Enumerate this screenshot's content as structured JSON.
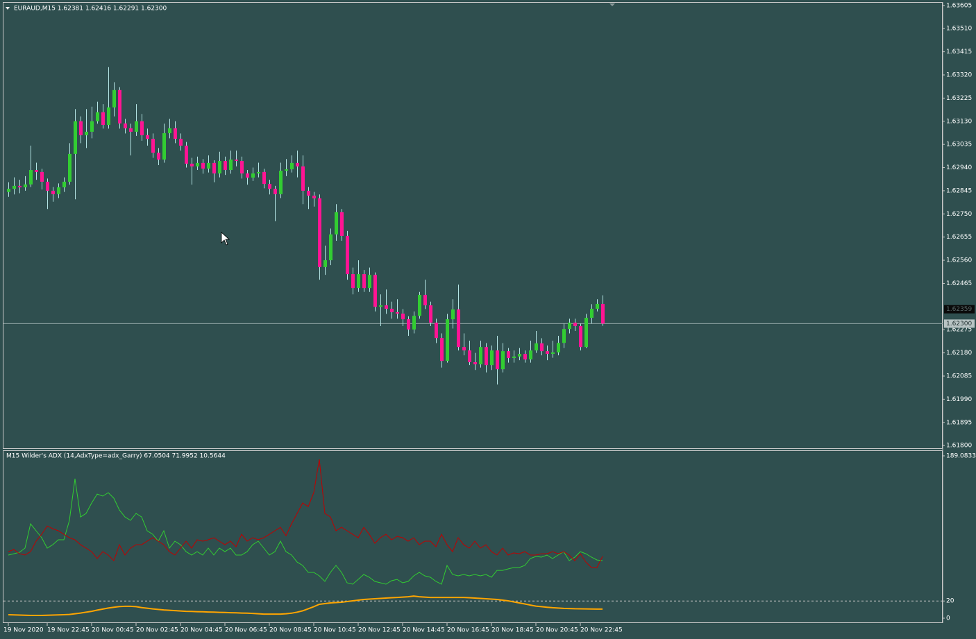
{
  "chart_data": [
    {
      "type": "candlestick",
      "title": "EURAUD,M15  1.62381 1.62416 1.62291 1.62300",
      "categories": [
        "19 Nov 2020",
        null,
        null,
        null,
        null,
        null,
        null,
        "19 Nov 22:45",
        null,
        null,
        null,
        null,
        null,
        null,
        null,
        "20 Nov 00:45",
        null,
        null,
        null,
        null,
        null,
        null,
        null,
        "20 Nov 02:45",
        null,
        null,
        null,
        null,
        null,
        null,
        null,
        "20 Nov 04:45",
        null,
        null,
        null,
        null,
        null,
        null,
        null,
        "20 Nov 06:45",
        null,
        null,
        null,
        null,
        null,
        null,
        null,
        "20 Nov 08:45",
        null,
        null,
        null,
        null,
        null,
        null,
        null,
        "20 Nov 10:45",
        null,
        null,
        null,
        null,
        null,
        null,
        null,
        "20 Nov 12:45",
        null,
        null,
        null,
        null,
        null,
        null,
        null,
        "20 Nov 14:45",
        null,
        null,
        null,
        null,
        null,
        null,
        null,
        "20 Nov 16:45",
        null,
        null,
        null,
        null,
        null,
        null,
        null,
        "20 Nov 18:45",
        null,
        null,
        null,
        null,
        null,
        null,
        null,
        "20 Nov 20:45",
        null,
        null,
        null,
        null,
        null,
        null,
        null,
        "20 Nov 22:45",
        null,
        null,
        null,
        null
      ],
      "open": [
        1.6284,
        1.62853,
        1.62865,
        1.62859,
        1.62871,
        1.6293,
        1.62922,
        1.62882,
        1.62845,
        1.62831,
        1.62859,
        1.62882,
        1.62996,
        1.6313,
        1.63073,
        1.63087,
        1.6313,
        1.63167,
        1.63115,
        1.63187,
        1.63258,
        1.63121,
        1.63101,
        1.63087,
        1.6313,
        1.63073,
        1.63058,
        1.63001,
        1.62973,
        1.63081,
        1.63101,
        1.63058,
        1.6303,
        1.62956,
        1.62945,
        1.62959,
        1.62936,
        1.62959,
        1.62916,
        1.62967,
        1.6293,
        1.62973,
        1.62967,
        1.62916,
        1.62899,
        1.62916,
        1.62922,
        1.62873,
        1.62853,
        1.62831,
        1.62927,
        1.62933,
        1.62959,
        1.62945,
        1.62845,
        1.62825,
        1.62814,
        1.62532,
        1.6256,
        1.62666,
        1.62757,
        1.6266,
        1.62503,
        1.62446,
        1.62503,
        1.62446,
        1.625,
        1.62369,
        1.62375,
        1.62361,
        1.62347,
        1.62341,
        1.62318,
        1.62276,
        1.62332,
        1.62418,
        1.62375,
        1.62304,
        1.62241,
        1.62147,
        1.62318,
        1.62358,
        1.62204,
        1.6219,
        1.62142,
        1.62133,
        1.62204,
        1.6213,
        1.6219,
        1.62113,
        1.62187,
        1.62159,
        1.62165,
        1.62176,
        1.62153,
        1.6219,
        1.62219,
        1.62187,
        1.62176,
        1.62182,
        1.62221,
        1.62278,
        1.62304,
        1.6229,
        1.62204,
        1.62324,
        1.62361,
        1.62381
      ],
      "high": [
        1.6288,
        1.629,
        1.6289,
        1.62905,
        1.6303,
        1.6296,
        1.62935,
        1.62895,
        1.6286,
        1.62875,
        1.629,
        1.6304,
        1.6318,
        1.6315,
        1.6318,
        1.6319,
        1.6321,
        1.632,
        1.63352,
        1.6329,
        1.6327,
        1.6314,
        1.6312,
        1.632,
        1.6316,
        1.631,
        1.6308,
        1.6302,
        1.6312,
        1.6314,
        1.6313,
        1.6308,
        1.63045,
        1.6298,
        1.62985,
        1.62975,
        1.6299,
        1.6297,
        1.63005,
        1.62985,
        1.6301,
        1.6301,
        1.62985,
        1.6293,
        1.6294,
        1.6296,
        1.62935,
        1.6289,
        1.62865,
        1.6296,
        1.62975,
        1.6299,
        1.6301,
        1.6299,
        1.6286,
        1.6284,
        1.6283,
        1.6262,
        1.6269,
        1.6279,
        1.6277,
        1.6268,
        1.6253,
        1.6256,
        1.6252,
        1.6253,
        1.6251,
        1.6242,
        1.6244,
        1.6239,
        1.624,
        1.6236,
        1.6233,
        1.6235,
        1.6243,
        1.6248,
        1.6239,
        1.6232,
        1.6226,
        1.6234,
        1.624,
        1.6246,
        1.6226,
        1.6223,
        1.6218,
        1.6223,
        1.6222,
        1.6221,
        1.6225,
        1.6222,
        1.622,
        1.6219,
        1.622,
        1.6219,
        1.6223,
        1.6227,
        1.6224,
        1.6221,
        1.6223,
        1.6225,
        1.623,
        1.6232,
        1.6232,
        1.623,
        1.6234,
        1.6238,
        1.624,
        1.62416
      ],
      "low": [
        1.6282,
        1.6283,
        1.62835,
        1.62845,
        1.6286,
        1.6289,
        1.6285,
        1.6277,
        1.628,
        1.62815,
        1.6284,
        1.6287,
        1.6281,
        1.6304,
        1.6302,
        1.6306,
        1.6312,
        1.631,
        1.631,
        1.6315,
        1.631,
        1.6308,
        1.6299,
        1.6307,
        1.6305,
        1.6303,
        1.6298,
        1.6295,
        1.6296,
        1.6306,
        1.6304,
        1.6301,
        1.6294,
        1.6287,
        1.6293,
        1.62915,
        1.6292,
        1.6288,
        1.629,
        1.6291,
        1.62915,
        1.62945,
        1.62895,
        1.6287,
        1.62885,
        1.629,
        1.62855,
        1.6283,
        1.6272,
        1.62815,
        1.62905,
        1.6292,
        1.629,
        1.6279,
        1.6277,
        1.6278,
        1.6248,
        1.625,
        1.6254,
        1.6264,
        1.6264,
        1.6248,
        1.6242,
        1.6243,
        1.6243,
        1.6243,
        1.6235,
        1.6229,
        1.6234,
        1.6232,
        1.6232,
        1.6229,
        1.6225,
        1.6226,
        1.6232,
        1.6236,
        1.6229,
        1.6222,
        1.6212,
        1.6214,
        1.6228,
        1.6219,
        1.6217,
        1.6213,
        1.6211,
        1.6212,
        1.621,
        1.6211,
        1.6205,
        1.621,
        1.6214,
        1.6214,
        1.6215,
        1.6214,
        1.6214,
        1.6218,
        1.6217,
        1.6215,
        1.6216,
        1.6217,
        1.622,
        1.6226,
        1.6227,
        1.6219,
        1.622,
        1.623,
        1.6235,
        1.62291
      ],
      "close": [
        1.62853,
        1.62865,
        1.62859,
        1.62871,
        1.6293,
        1.62922,
        1.62882,
        1.62845,
        1.62831,
        1.62859,
        1.62882,
        1.62996,
        1.6313,
        1.63073,
        1.63087,
        1.6313,
        1.63167,
        1.63115,
        1.63187,
        1.63258,
        1.63121,
        1.63101,
        1.63087,
        1.6313,
        1.63073,
        1.63058,
        1.63001,
        1.62973,
        1.63081,
        1.63101,
        1.63058,
        1.6303,
        1.62956,
        1.62945,
        1.62959,
        1.62936,
        1.62959,
        1.62916,
        1.62967,
        1.6293,
        1.62973,
        1.62967,
        1.62916,
        1.62899,
        1.62916,
        1.62922,
        1.62873,
        1.62853,
        1.62831,
        1.62927,
        1.62933,
        1.62959,
        1.62945,
        1.62845,
        1.62825,
        1.62814,
        1.62532,
        1.6256,
        1.62666,
        1.62757,
        1.6266,
        1.62503,
        1.62446,
        1.62503,
        1.62446,
        1.625,
        1.62369,
        1.62375,
        1.62361,
        1.62347,
        1.62341,
        1.62318,
        1.62276,
        1.62332,
        1.62418,
        1.62375,
        1.62304,
        1.62241,
        1.62147,
        1.62318,
        1.62358,
        1.62204,
        1.6219,
        1.62142,
        1.62133,
        1.62204,
        1.6213,
        1.6219,
        1.62113,
        1.62187,
        1.62159,
        1.62165,
        1.62176,
        1.62153,
        1.6219,
        1.62219,
        1.62187,
        1.62176,
        1.62182,
        1.62221,
        1.62278,
        1.62304,
        1.6229,
        1.62204,
        1.62324,
        1.62361,
        1.62381,
        1.623
      ],
      "up_color": "#32cd32",
      "down_color": "#ff1493",
      "wick_color": "#b4e4e4",
      "ylim": [
        1.61789,
        1.63616
      ],
      "yticks": [
        1.63605,
        {
          "value": 1.6351,
          "label": "1.63510"
        },
        1.63415,
        {
          "value": 1.6332,
          "label": "1.63320"
        },
        1.63225,
        {
          "value": 1.6313,
          "label": "1.63130"
        },
        1.63035,
        {
          "value": 1.6294,
          "label": "1.62940"
        },
        1.62845,
        {
          "value": 1.6275,
          "label": "1.62750"
        },
        1.62655,
        {
          "value": 1.6256,
          "label": "1.62560"
        },
        1.62465,
        1.62275,
        {
          "value": 1.6218,
          "label": "1.62180"
        },
        1.62085,
        {
          "value": 1.6199,
          "label": "1.61990"
        },
        1.61895,
        {
          "value": 1.618,
          "label": "1.61800"
        }
      ],
      "ask_price": 1.62359,
      "current_price": {
        "value": 1.623,
        "label": "1.62300"
      }
    },
    {
      "type": "line",
      "title": "M15 Wilder's  ADX (14,AdxType=adx_Garry) 67.0504 71.9952 10.5644",
      "ylim": [
        0,
        189.0833
      ],
      "yticks": [
        189.0833,
        20,
        0
      ],
      "series": [
        {
          "color": "#32cd32",
          "values": [
            73.5,
            75.1,
            76.7,
            81.6,
            109.9,
            101.8,
            93.7,
            81.6,
            85.6,
            91.3,
            91.3,
            113.9,
            162.4,
            117.9,
            122.0,
            134.1,
            144.6,
            142.2,
            146.2,
            139.7,
            126.0,
            117.9,
            113.9,
            122.0,
            117.9,
            101.8,
            97.7,
            89.7,
            101.8,
            81.6,
            89.7,
            85.6,
            77.5,
            73.5,
            77.5,
            73.5,
            81.6,
            73.5,
            81.6,
            77.5,
            81.6,
            73.5,
            73.5,
            77.5,
            85.6,
            89.7,
            81.6,
            73.5,
            77.5,
            89.7,
            77.5,
            73.5,
            65.4,
            61.4,
            53.3,
            53.3,
            49.3,
            42.8,
            53.3,
            61.4,
            53.3,
            41.2,
            39.6,
            45.2,
            50.9,
            47.7,
            42.8,
            41.2,
            39.6,
            43.6,
            45.2,
            41.2,
            42.8,
            49.3,
            53.3,
            49.3,
            47.7,
            42.8,
            39.6,
            61.4,
            50.9,
            49.3,
            50.9,
            49.3,
            50.9,
            49.3,
            50.9,
            47.7,
            55.7,
            55.7,
            57.4,
            59.0,
            59.0,
            61.4,
            69.5,
            71.9,
            71.1,
            73.5,
            69.5,
            73.5,
            77.5,
            67.0,
            71.1,
            77.5,
            75.1,
            71.1,
            67.8,
            67.0504
          ]
        },
        {
          "color": "#c00000",
          "values": [
            77.5,
            80.0,
            75.1,
            73.5,
            77.5,
            89.7,
            97.7,
            107.4,
            104.2,
            101.8,
            97.7,
            93.7,
            91.3,
            85.6,
            81.6,
            77.5,
            69.5,
            77.5,
            73.5,
            67.0,
            85.6,
            73.5,
            81.6,
            85.6,
            85.6,
            89.7,
            93.7,
            89.7,
            85.6,
            77.5,
            73.5,
            81.6,
            89.7,
            81.6,
            91.3,
            89.7,
            91.3,
            93.7,
            89.7,
            85.6,
            89.7,
            83.2,
            97.7,
            89.7,
            93.7,
            91.3,
            93.7,
            97.7,
            101.8,
            105.8,
            96.1,
            109.9,
            122.0,
            134.1,
            130.0,
            146.2,
            185.0,
            122.0,
            117.9,
            101.8,
            105.8,
            101.8,
            97.7,
            93.7,
            105.8,
            97.7,
            87.2,
            93.7,
            97.7,
            91.3,
            95.3,
            93.7,
            89.7,
            93.7,
            85.6,
            89.7,
            89.7,
            83.2,
            97.7,
            85.6,
            77.5,
            93.7,
            85.6,
            81.6,
            89.7,
            81.6,
            85.6,
            77.5,
            73.5,
            81.6,
            73.5,
            76.0,
            75.1,
            77.5,
            73.5,
            73.5,
            75.1,
            75.1,
            77.5,
            75.1,
            77.5,
            73.5,
            67.0,
            75.1,
            65.4,
            59.0,
            59.0,
            71.9952
          ]
        },
        {
          "color": "#ffa500",
          "values": [
            4.0,
            3.8,
            3.6,
            3.4,
            3.2,
            3.2,
            3.2,
            3.4,
            3.6,
            3.8,
            4.0,
            4.4,
            5.2,
            6.0,
            7.0,
            8.0,
            9.4,
            10.6,
            11.8,
            12.8,
            13.6,
            13.8,
            13.8,
            13.4,
            12.4,
            11.6,
            10.8,
            10.2,
            9.6,
            9.2,
            8.8,
            8.4,
            8.0,
            7.8,
            7.6,
            7.4,
            7.2,
            7.0,
            6.8,
            6.6,
            6.4,
            6.2,
            6.0,
            5.8,
            5.6,
            5.2,
            4.8,
            4.8,
            4.8,
            4.8,
            5.2,
            5.8,
            7.0,
            8.6,
            11.0,
            13.4,
            16.2,
            17.0,
            17.8,
            18.2,
            18.6,
            19.4,
            20.2,
            21.0,
            21.8,
            22.2,
            22.6,
            23.0,
            23.4,
            23.8,
            24.2,
            24.6,
            25.0,
            25.8,
            25.0,
            24.6,
            24.2,
            24.2,
            24.2,
            24.2,
            24.2,
            24.2,
            24.2,
            23.8,
            23.4,
            23.0,
            22.6,
            22.2,
            21.8,
            21.0,
            20.2,
            19.0,
            17.8,
            16.6,
            15.3,
            14.1,
            13.4,
            12.8,
            12.2,
            11.8,
            11.4,
            11.2,
            11.0,
            10.9,
            10.8,
            10.7,
            10.6,
            10.5644
          ]
        }
      ]
    }
  ]
}
